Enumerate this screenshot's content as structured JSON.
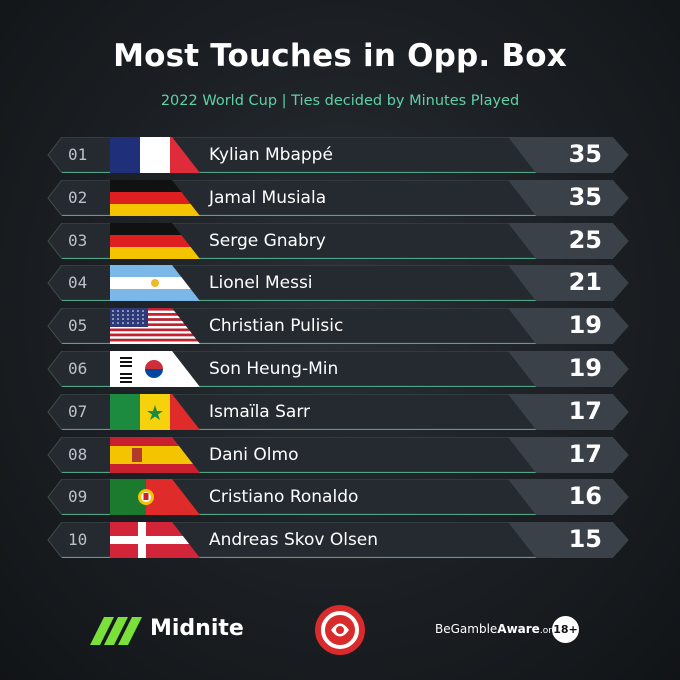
{
  "title": "Most Touches in Opp. Box",
  "subtitle": "2022 World Cup | Ties decided by Minutes Played",
  "colors": {
    "accent": "#5fd1a5",
    "background": "#1b1f23",
    "bar": "#252a30",
    "value_bar": "#3a4148"
  },
  "chart_data": {
    "type": "bar",
    "title": "Most Touches in Opp. Box",
    "subtitle": "2022 World Cup | Ties decided by Minutes Played",
    "categories": [
      "Kylian Mbappé",
      "Jamal Musiala",
      "Serge Gnabry",
      "Lionel Messi",
      "Christian Pulisic",
      "Son Heung-Min",
      "Ismaïla Sarr",
      "Dani Olmo",
      "Cristiano Ronaldo",
      "Andreas Skov Olsen"
    ],
    "values": [
      35,
      35,
      25,
      21,
      19,
      19,
      17,
      17,
      16,
      15
    ],
    "ranks": [
      "01",
      "02",
      "03",
      "04",
      "05",
      "06",
      "07",
      "08",
      "09",
      "10"
    ],
    "flags": [
      "france-flag",
      "germany-flag",
      "germany-flag",
      "argentina-flag",
      "usa-flag",
      "south-korea-flag",
      "senegal-flag",
      "spain-flag",
      "portugal-flag",
      "denmark-flag"
    ],
    "xlabel": "",
    "ylabel": ""
  },
  "footer": {
    "brand": "Midnite",
    "gamble_prefix": "BeGamble",
    "gamble_bold": "Aware",
    "gamble_suffix": ".org",
    "age": "18+"
  }
}
